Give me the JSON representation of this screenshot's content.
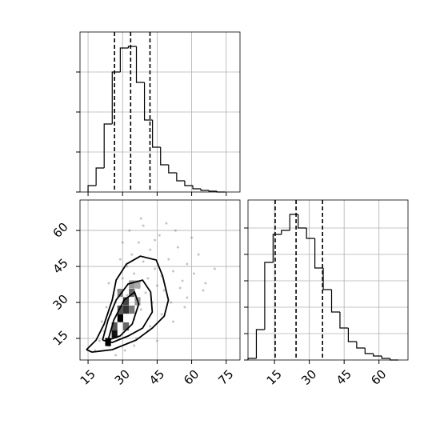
{
  "chart_data": [
    {
      "type": "histogram",
      "bins": [
        15,
        18.5,
        22,
        25.5,
        29,
        32.5,
        36,
        39.5,
        43,
        46.5,
        50,
        53.5,
        57,
        60.5,
        64,
        67.5,
        71,
        74.5
      ],
      "values": [
        8,
        30,
        85,
        150,
        180,
        182,
        137,
        90,
        56,
        34,
        24,
        14,
        8,
        4,
        2,
        1,
        0
      ],
      "quantiles": [
        26.5,
        33.5,
        41.9
      ],
      "color": "#000000",
      "xlim": [
        11.5,
        81
      ],
      "ylim": [
        0,
        200
      ],
      "grid": true
    },
    {
      "type": "scatter",
      "x": [
        20,
        22,
        24,
        25,
        26,
        27,
        28,
        28,
        29,
        30,
        30,
        31,
        32,
        32,
        33,
        34,
        34,
        35,
        35,
        36,
        37,
        37,
        38,
        39,
        40,
        41,
        42,
        43,
        44,
        45,
        46,
        47,
        48,
        50,
        52,
        54,
        56,
        58,
        60,
        63,
        18,
        21,
        23,
        26,
        29,
        31,
        33,
        36,
        39,
        42,
        44,
        47,
        49,
        51,
        53,
        55,
        57,
        61,
        65,
        70,
        27,
        30,
        35,
        38,
        41,
        24,
        45,
        52,
        58,
        66
      ],
      "y": [
        14,
        18,
        12,
        25,
        20,
        30,
        16,
        35,
        22,
        28,
        40,
        19,
        33,
        45,
        26,
        38,
        50,
        23,
        42,
        31,
        55,
        36,
        27,
        47,
        34,
        40,
        52,
        30,
        44,
        37,
        58,
        41,
        35,
        48,
        43,
        53,
        39,
        46,
        57,
        50,
        10,
        22,
        28,
        33,
        48,
        10,
        60,
        15,
        62,
        20,
        56,
        25,
        63,
        30,
        60,
        36,
        28,
        42,
        35,
        44,
        8,
        55,
        12,
        65,
        18,
        38,
        14,
        22,
        32,
        38
      ],
      "color": "#7f7f7f",
      "density": [
        {
          "x": 23.7,
          "y": 13.5,
          "color": "#000000"
        },
        {
          "x": 26.5,
          "y": 17,
          "color": "#111111"
        },
        {
          "x": 29,
          "y": 23.5,
          "color": "#000000"
        },
        {
          "x": 31.5,
          "y": 27,
          "color": "#333333"
        },
        {
          "x": 29,
          "y": 27,
          "color": "#555555"
        },
        {
          "x": 31.5,
          "y": 30.5,
          "color": "#444444"
        },
        {
          "x": 34,
          "y": 34,
          "color": "#666666"
        },
        {
          "x": 31.5,
          "y": 20,
          "color": "#666666"
        },
        {
          "x": 34,
          "y": 27,
          "color": "#777777"
        },
        {
          "x": 26.5,
          "y": 20,
          "color": "#555555"
        },
        {
          "x": 34,
          "y": 37.5,
          "color": "#999999"
        },
        {
          "x": 36.5,
          "y": 30.5,
          "color": "#999999"
        },
        {
          "x": 29,
          "y": 34,
          "color": "#888888"
        },
        {
          "x": 36.5,
          "y": 37.5,
          "color": "#aaaaaa"
        }
      ],
      "contours": [
        {
          "x": [
            14.3,
            18.5,
            22,
            25.5,
            27.2,
            31.7,
            37.7,
            44.6,
            47.4,
            49.9,
            48.1,
            42.9,
            35.9,
            25.5,
            16.7,
            14.3
          ],
          "y": [
            10.3,
            14.3,
            21,
            31,
            39.3,
            46,
            49.3,
            47.7,
            41,
            31,
            24.3,
            19.3,
            14.3,
            10.3,
            9.3,
            10.3
          ]
        },
        {
          "x": [
            21.3,
            23.7,
            27.2,
            32.4,
            38.7,
            42.2,
            42.9,
            38.7,
            32.4,
            25.5,
            21.3
          ],
          "y": [
            14.3,
            22.7,
            31,
            37.7,
            39.3,
            34.3,
            26,
            19.3,
            16,
            13.3,
            14.3
          ]
        },
        {
          "x": [
            23.7,
            26.2,
            30.7,
            35.2,
            37,
            34.2,
            28.9,
            23.7
          ],
          "y": [
            14.3,
            22.7,
            31,
            34.3,
            29.3,
            21,
            16,
            14.3
          ]
        }
      ],
      "xlim": [
        11.5,
        81
      ],
      "ylim": [
        6,
        72.7
      ],
      "xticks": [
        15,
        30,
        45,
        60,
        75
      ],
      "yticks": [
        15,
        30,
        45,
        60
      ],
      "grid": true
    },
    {
      "type": "histogram",
      "bins": [
        3.6,
        7.2,
        10.8,
        14.4,
        18,
        21.6,
        25.2,
        28.8,
        32.4,
        36,
        39.6,
        43.2,
        46.8,
        50.4,
        54,
        57.6,
        61.2,
        64.8,
        68.4
      ],
      "values": [
        2,
        38,
        122,
        157,
        162,
        182,
        165,
        152,
        115,
        88,
        60,
        40,
        23,
        15,
        8,
        5,
        2,
        0
      ],
      "quantiles": [
        15.3,
        24.3,
        35.7
      ],
      "color": "#000000",
      "xlim": [
        3.6,
        72.5
      ],
      "ylim": [
        0,
        200
      ],
      "xticks": [
        15,
        30,
        45,
        60
      ],
      "grid": true
    }
  ]
}
